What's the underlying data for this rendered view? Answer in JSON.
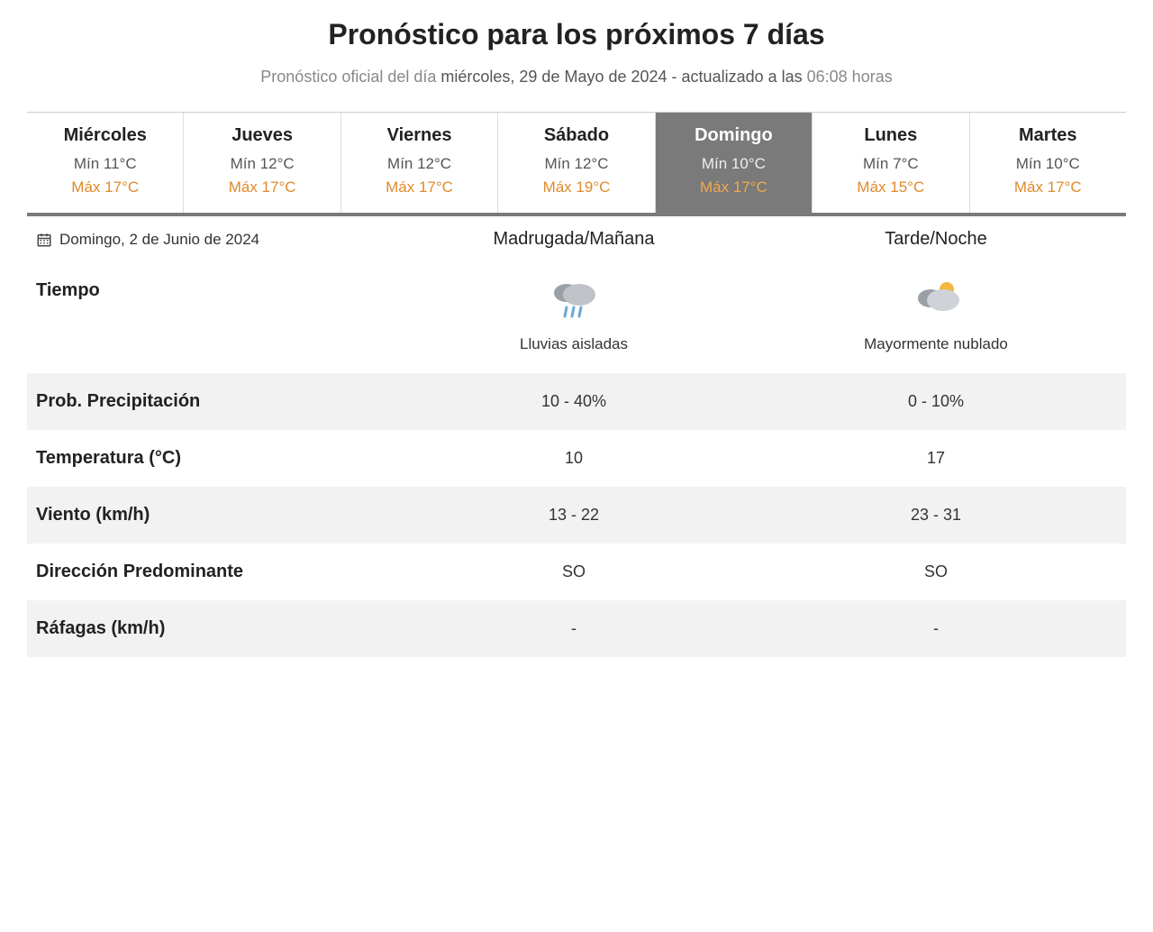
{
  "title": "Pronóstico para los próximos 7 días",
  "subtitle": {
    "prefix": "Pronóstico oficial del día ",
    "date": "miércoles, 29 de Mayo de 2024",
    "mid": " - actualizado a las ",
    "time": "06:08 horas"
  },
  "colors": {
    "max_temp": "#e08a2c",
    "active_bg": "#7a7a7a",
    "stripe": "#f2f2f2",
    "text": "#333333",
    "muted": "#888888"
  },
  "days": [
    {
      "name": "Miércoles",
      "min": "Mín 11°C",
      "max": "Máx 17°C",
      "active": false
    },
    {
      "name": "Jueves",
      "min": "Mín 12°C",
      "max": "Máx 17°C",
      "active": false
    },
    {
      "name": "Viernes",
      "min": "Mín 12°C",
      "max": "Máx 17°C",
      "active": false
    },
    {
      "name": "Sábado",
      "min": "Mín 12°C",
      "max": "Máx 19°C",
      "active": false
    },
    {
      "name": "Domingo",
      "min": "Mín 10°C",
      "max": "Máx 17°C",
      "active": true
    },
    {
      "name": "Lunes",
      "min": "Mín 7°C",
      "max": "Máx 15°C",
      "active": false
    },
    {
      "name": "Martes",
      "min": "Mín 10°C",
      "max": "Máx 17°C",
      "active": false
    }
  ],
  "selected_date": "Domingo, 2 de Junio de 2024",
  "periods": {
    "morning": "Madrugada/Mañana",
    "evening": "Tarde/Noche"
  },
  "weather_label": "Tiempo",
  "weather": {
    "morning": {
      "icon": "rain",
      "desc": "Lluvias aisladas"
    },
    "evening": {
      "icon": "mostly-cloudy",
      "desc": "Mayormente nublado"
    }
  },
  "rows": [
    {
      "label": "Prob. Precipitación",
      "morning": "10 - 40%",
      "evening": "0 - 10%",
      "stripe": true
    },
    {
      "label": "Temperatura (°C)",
      "morning": "10",
      "evening": "17",
      "stripe": false
    },
    {
      "label": "Viento (km/h)",
      "morning": "13 - 22",
      "evening": "23 - 31",
      "stripe": true
    },
    {
      "label": "Dirección Predominante",
      "morning": "SO",
      "evening": "SO",
      "stripe": false
    },
    {
      "label": "Ráfagas (km/h)",
      "morning": "-",
      "evening": "-",
      "stripe": true
    }
  ]
}
